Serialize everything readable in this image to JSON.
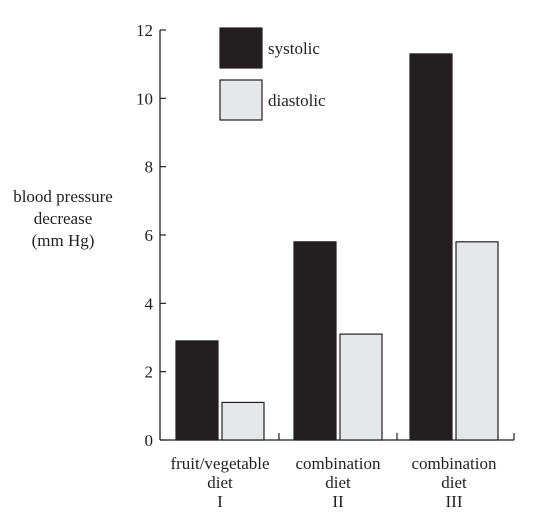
{
  "chart_data": {
    "type": "bar",
    "ylabel_lines": [
      "blood pressure",
      "decrease",
      "(mm Hg)"
    ],
    "categories": [
      {
        "lines": [
          "fruit/vegetable",
          "diet",
          "I"
        ]
      },
      {
        "lines": [
          "combination",
          "diet",
          "II"
        ]
      },
      {
        "lines": [
          "combination",
          "diet",
          "III"
        ]
      }
    ],
    "series": [
      {
        "name": "systolic",
        "color": "#231f20",
        "values": [
          2.9,
          5.8,
          11.3
        ]
      },
      {
        "name": "diastolic",
        "color": "#e6e7e8",
        "values": [
          1.1,
          3.1,
          5.8
        ]
      }
    ],
    "ylim": [
      0,
      12
    ],
    "yticks": [
      "0",
      "2",
      "4",
      "6",
      "8",
      "10",
      "12"
    ],
    "legend_position": "top-center",
    "grid": false
  }
}
